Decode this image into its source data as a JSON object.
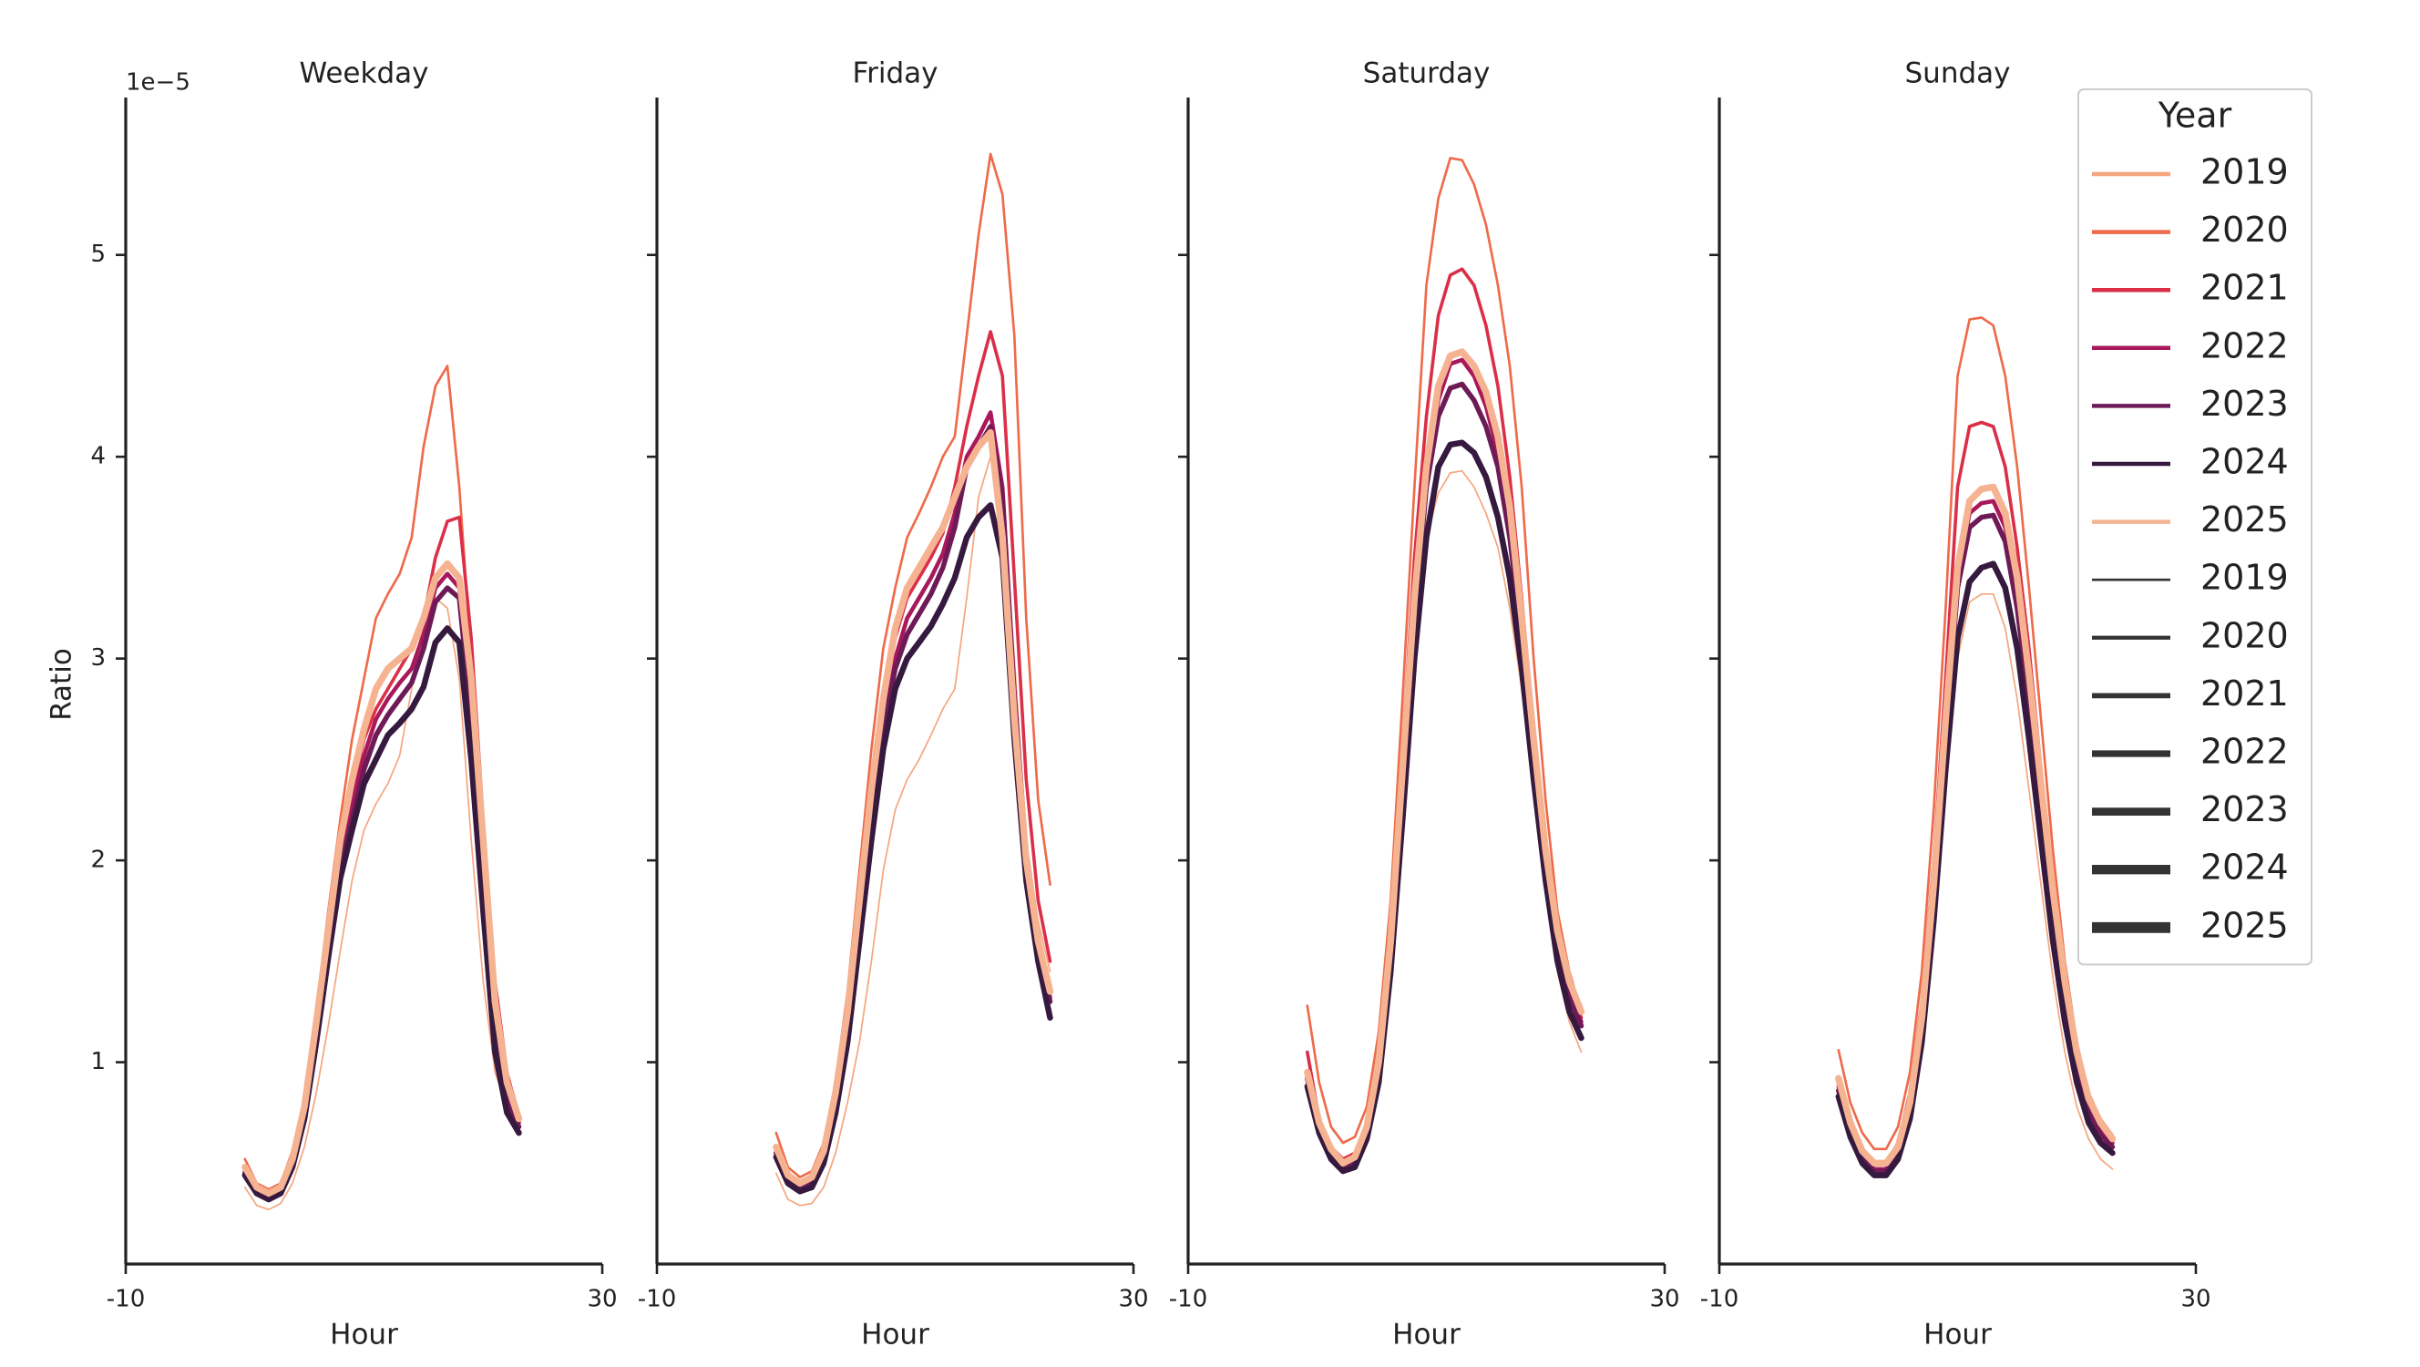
{
  "chart_data": [
    {
      "type": "line",
      "title": "Weekday",
      "x_label": "Hour",
      "y_label": "Ratio",
      "offset_label": "1e−5",
      "x": [
        0,
        1,
        2,
        3,
        4,
        5,
        6,
        7,
        8,
        9,
        10,
        11,
        12,
        13,
        14,
        15,
        16,
        17,
        18,
        19,
        20,
        21,
        22,
        23
      ],
      "xlim": [
        -10,
        30
      ],
      "xticks": [
        -10,
        30
      ],
      "ylim": [
        0,
        5.78
      ],
      "yticks": [
        1,
        2,
        3,
        4,
        5
      ],
      "show_ytick_labels": true,
      "series": [
        {
          "name": "2019",
          "color": "#f5a57f",
          "values": [
            0.38,
            0.29,
            0.27,
            0.3,
            0.4,
            0.58,
            0.85,
            1.18,
            1.55,
            1.9,
            2.15,
            2.28,
            2.38,
            2.52,
            2.85,
            3.2,
            3.3,
            3.25,
            2.9,
            2.1,
            1.4,
            0.95,
            0.78,
            0.7
          ]
        },
        {
          "name": "2020",
          "color": "#ee6a4a",
          "values": [
            0.52,
            0.4,
            0.37,
            0.4,
            0.56,
            0.82,
            1.25,
            1.75,
            2.2,
            2.6,
            2.9,
            3.2,
            3.32,
            3.42,
            3.6,
            4.05,
            4.35,
            4.45,
            3.85,
            3.0,
            2.1,
            1.3,
            0.95,
            0.75
          ]
        },
        {
          "name": "2021",
          "color": "#db2f48",
          "values": [
            0.47,
            0.38,
            0.35,
            0.38,
            0.52,
            0.78,
            1.18,
            1.62,
            2.05,
            2.35,
            2.6,
            2.75,
            2.85,
            2.95,
            3.05,
            3.2,
            3.5,
            3.68,
            3.7,
            3.1,
            2.2,
            1.4,
            0.95,
            0.72
          ]
        },
        {
          "name": "2022",
          "color": "#a8185b",
          "values": [
            0.46,
            0.37,
            0.34,
            0.37,
            0.5,
            0.76,
            1.14,
            1.58,
            2.0,
            2.28,
            2.52,
            2.7,
            2.8,
            2.88,
            2.95,
            3.12,
            3.35,
            3.42,
            3.35,
            2.75,
            1.95,
            1.2,
            0.85,
            0.7
          ]
        },
        {
          "name": "2023",
          "color": "#6d1a57",
          "values": [
            0.45,
            0.36,
            0.33,
            0.36,
            0.5,
            0.75,
            1.12,
            1.55,
            1.95,
            2.2,
            2.45,
            2.62,
            2.72,
            2.8,
            2.88,
            3.05,
            3.28,
            3.35,
            3.3,
            2.7,
            1.9,
            1.15,
            0.8,
            0.68
          ]
        },
        {
          "name": "2024",
          "color": "#35193e",
          "values": [
            0.44,
            0.35,
            0.32,
            0.35,
            0.48,
            0.72,
            1.1,
            1.52,
            1.91,
            2.15,
            2.38,
            2.5,
            2.62,
            2.68,
            2.75,
            2.86,
            3.08,
            3.15,
            3.08,
            2.5,
            1.75,
            1.05,
            0.75,
            0.65
          ]
        },
        {
          "name": "2025",
          "color": "#f6b391",
          "values": [
            0.48,
            0.38,
            0.35,
            0.38,
            0.52,
            0.78,
            1.2,
            1.65,
            2.1,
            2.4,
            2.65,
            2.85,
            2.95,
            3.0,
            3.05,
            3.2,
            3.4,
            3.47,
            3.4,
            2.9,
            2.1,
            1.3,
            0.9,
            0.72
          ]
        }
      ]
    },
    {
      "type": "line",
      "title": "Friday",
      "x_label": "Hour",
      "x": [
        0,
        1,
        2,
        3,
        4,
        5,
        6,
        7,
        8,
        9,
        10,
        11,
        12,
        13,
        14,
        15,
        16,
        17,
        18,
        19,
        20,
        21,
        22,
        23
      ],
      "xlim": [
        -10,
        30
      ],
      "xticks": [
        -10,
        30
      ],
      "ylim": [
        0,
        5.78
      ],
      "yticks": [
        1,
        2,
        3,
        4,
        5
      ],
      "show_ytick_labels": false,
      "series": [
        {
          "name": "2019",
          "color": "#f5a57f",
          "values": [
            0.45,
            0.32,
            0.29,
            0.3,
            0.38,
            0.55,
            0.8,
            1.1,
            1.5,
            1.95,
            2.25,
            2.4,
            2.5,
            2.62,
            2.75,
            2.85,
            3.3,
            3.8,
            4.0,
            3.8,
            3.0,
            2.1,
            1.7,
            1.45
          ]
        },
        {
          "name": "2020",
          "color": "#ee6a4a",
          "values": [
            0.65,
            0.48,
            0.43,
            0.46,
            0.6,
            0.9,
            1.35,
            1.95,
            2.55,
            3.05,
            3.35,
            3.6,
            3.72,
            3.85,
            4.0,
            4.1,
            4.6,
            5.1,
            5.5,
            5.3,
            4.6,
            3.2,
            2.3,
            1.88
          ]
        },
        {
          "name": "2021",
          "color": "#db2f48",
          "values": [
            0.58,
            0.44,
            0.4,
            0.43,
            0.56,
            0.85,
            1.25,
            1.8,
            2.35,
            2.8,
            3.1,
            3.3,
            3.4,
            3.5,
            3.62,
            3.85,
            4.15,
            4.4,
            4.62,
            4.4,
            3.4,
            2.4,
            1.8,
            1.5
          ]
        },
        {
          "name": "2022",
          "color": "#a8185b",
          "values": [
            0.56,
            0.42,
            0.38,
            0.41,
            0.54,
            0.82,
            1.2,
            1.72,
            2.25,
            2.7,
            3.0,
            3.2,
            3.3,
            3.4,
            3.52,
            3.72,
            4.0,
            4.1,
            4.22,
            3.85,
            2.85,
            2.05,
            1.62,
            1.32
          ]
        },
        {
          "name": "2023",
          "color": "#6d1a57",
          "values": [
            0.55,
            0.42,
            0.38,
            0.4,
            0.53,
            0.8,
            1.18,
            1.7,
            2.22,
            2.65,
            2.95,
            3.12,
            3.22,
            3.32,
            3.45,
            3.65,
            3.95,
            4.05,
            4.15,
            3.8,
            2.8,
            2.0,
            1.6,
            1.3
          ]
        },
        {
          "name": "2024",
          "color": "#35193e",
          "values": [
            0.53,
            0.4,
            0.36,
            0.38,
            0.5,
            0.75,
            1.1,
            1.6,
            2.1,
            2.55,
            2.85,
            3.0,
            3.08,
            3.16,
            3.27,
            3.4,
            3.6,
            3.7,
            3.76,
            3.5,
            2.6,
            1.9,
            1.5,
            1.22
          ]
        },
        {
          "name": "2025",
          "color": "#f6b391",
          "values": [
            0.58,
            0.44,
            0.4,
            0.43,
            0.56,
            0.85,
            1.25,
            1.8,
            2.35,
            2.8,
            3.15,
            3.35,
            3.45,
            3.55,
            3.65,
            3.8,
            3.95,
            4.05,
            4.12,
            3.6,
            2.7,
            2.0,
            1.6,
            1.35
          ]
        }
      ]
    },
    {
      "type": "line",
      "title": "Saturday",
      "x_label": "Hour",
      "x": [
        0,
        1,
        2,
        3,
        4,
        5,
        6,
        7,
        8,
        9,
        10,
        11,
        12,
        13,
        14,
        15,
        16,
        17,
        18,
        19,
        20,
        21,
        22,
        23
      ],
      "xlim": [
        -10,
        30
      ],
      "xticks": [
        -10,
        30
      ],
      "ylim": [
        0,
        5.78
      ],
      "yticks": [
        1,
        2,
        3,
        4,
        5
      ],
      "show_ytick_labels": false,
      "series": [
        {
          "name": "2019",
          "color": "#f5a57f",
          "values": [
            0.85,
            0.63,
            0.52,
            0.47,
            0.5,
            0.63,
            0.92,
            1.45,
            2.2,
            3.0,
            3.6,
            3.82,
            3.92,
            3.93,
            3.85,
            3.72,
            3.55,
            3.25,
            2.85,
            2.35,
            1.85,
            1.45,
            1.2,
            1.05
          ]
        },
        {
          "name": "2020",
          "color": "#ee6a4a",
          "values": [
            1.28,
            0.9,
            0.68,
            0.6,
            0.63,
            0.78,
            1.15,
            1.8,
            2.8,
            3.85,
            4.85,
            5.28,
            5.48,
            5.47,
            5.35,
            5.15,
            4.85,
            4.45,
            3.85,
            3.0,
            2.3,
            1.75,
            1.45,
            1.25
          ]
        },
        {
          "name": "2021",
          "color": "#db2f48",
          "values": [
            1.05,
            0.72,
            0.58,
            0.52,
            0.55,
            0.7,
            1.05,
            1.65,
            2.55,
            3.5,
            4.2,
            4.7,
            4.9,
            4.93,
            4.85,
            4.65,
            4.35,
            3.9,
            3.3,
            2.65,
            2.1,
            1.65,
            1.38,
            1.22
          ]
        },
        {
          "name": "2022",
          "color": "#a8185b",
          "values": [
            0.95,
            0.68,
            0.55,
            0.49,
            0.51,
            0.66,
            0.98,
            1.56,
            2.4,
            3.26,
            3.9,
            4.28,
            4.46,
            4.48,
            4.4,
            4.25,
            4.02,
            3.65,
            3.12,
            2.55,
            2.02,
            1.62,
            1.35,
            1.2
          ]
        },
        {
          "name": "2023",
          "color": "#6d1a57",
          "values": [
            0.92,
            0.67,
            0.54,
            0.48,
            0.5,
            0.64,
            0.95,
            1.52,
            2.35,
            3.2,
            3.85,
            4.2,
            4.34,
            4.36,
            4.28,
            4.15,
            3.95,
            3.6,
            3.1,
            2.52,
            2.0,
            1.6,
            1.32,
            1.18
          ]
        },
        {
          "name": "2024",
          "color": "#35193e",
          "values": [
            0.88,
            0.65,
            0.52,
            0.46,
            0.48,
            0.62,
            0.9,
            1.45,
            2.2,
            3.0,
            3.6,
            3.95,
            4.06,
            4.07,
            4.02,
            3.9,
            3.7,
            3.4,
            2.95,
            2.4,
            1.9,
            1.5,
            1.25,
            1.12
          ]
        },
        {
          "name": "2025",
          "color": "#f6b391",
          "values": [
            0.95,
            0.7,
            0.57,
            0.5,
            0.53,
            0.68,
            1.0,
            1.6,
            2.45,
            3.3,
            3.95,
            4.35,
            4.5,
            4.52,
            4.45,
            4.32,
            4.1,
            3.75,
            3.2,
            2.6,
            2.05,
            1.65,
            1.4,
            1.25
          ]
        }
      ]
    },
    {
      "type": "line",
      "title": "Sunday",
      "x_label": "Hour",
      "x": [
        0,
        1,
        2,
        3,
        4,
        5,
        6,
        7,
        8,
        9,
        10,
        11,
        12,
        13,
        14,
        15,
        16,
        17,
        18,
        19,
        20,
        21,
        22,
        23
      ],
      "xlim": [
        -10,
        30
      ],
      "xticks": [
        -10,
        30
      ],
      "ylim": [
        0,
        5.78
      ],
      "yticks": [
        1,
        2,
        3,
        4,
        5
      ],
      "show_ytick_labels": false,
      "legend": {
        "title": "Year",
        "location": "upper right"
      },
      "series": [
        {
          "name": "2019",
          "color": "#f5a57f",
          "values": [
            0.85,
            0.63,
            0.51,
            0.45,
            0.45,
            0.52,
            0.72,
            1.08,
            1.65,
            2.35,
            3.0,
            3.28,
            3.32,
            3.32,
            3.15,
            2.8,
            2.35,
            1.88,
            1.42,
            1.05,
            0.78,
            0.62,
            0.52,
            0.47
          ]
        },
        {
          "name": "2020",
          "color": "#ee6a4a",
          "values": [
            1.06,
            0.8,
            0.65,
            0.57,
            0.57,
            0.68,
            0.95,
            1.45,
            2.25,
            3.25,
            4.4,
            4.68,
            4.69,
            4.65,
            4.4,
            3.95,
            3.35,
            2.7,
            2.05,
            1.5,
            1.1,
            0.85,
            0.72,
            0.64
          ]
        },
        {
          "name": "2021",
          "color": "#db2f48",
          "values": [
            0.92,
            0.7,
            0.56,
            0.5,
            0.5,
            0.6,
            0.85,
            1.3,
            2.0,
            2.9,
            3.85,
            4.15,
            4.17,
            4.15,
            3.95,
            3.55,
            3.05,
            2.45,
            1.9,
            1.42,
            1.05,
            0.82,
            0.7,
            0.62
          ]
        },
        {
          "name": "2022",
          "color": "#a8185b",
          "values": [
            0.88,
            0.66,
            0.53,
            0.47,
            0.47,
            0.55,
            0.78,
            1.18,
            1.83,
            2.65,
            3.4,
            3.72,
            3.77,
            3.78,
            3.65,
            3.32,
            2.85,
            2.3,
            1.78,
            1.34,
            0.99,
            0.77,
            0.66,
            0.6
          ]
        },
        {
          "name": "2023",
          "color": "#6d1a57",
          "values": [
            0.86,
            0.65,
            0.52,
            0.46,
            0.46,
            0.54,
            0.76,
            1.16,
            1.8,
            2.6,
            3.35,
            3.65,
            3.7,
            3.71,
            3.58,
            3.25,
            2.78,
            2.25,
            1.72,
            1.3,
            0.96,
            0.75,
            0.64,
            0.58
          ]
        },
        {
          "name": "2024",
          "color": "#35193e",
          "values": [
            0.83,
            0.63,
            0.5,
            0.44,
            0.44,
            0.52,
            0.72,
            1.1,
            1.7,
            2.45,
            3.1,
            3.38,
            3.45,
            3.47,
            3.35,
            3.05,
            2.6,
            2.1,
            1.6,
            1.2,
            0.9,
            0.7,
            0.6,
            0.55
          ]
        },
        {
          "name": "2025",
          "color": "#f6b391",
          "values": [
            0.92,
            0.7,
            0.56,
            0.5,
            0.5,
            0.58,
            0.8,
            1.22,
            1.88,
            2.7,
            3.45,
            3.78,
            3.84,
            3.85,
            3.72,
            3.4,
            2.92,
            2.38,
            1.85,
            1.4,
            1.05,
            0.82,
            0.7,
            0.62
          ]
        }
      ]
    }
  ]
}
